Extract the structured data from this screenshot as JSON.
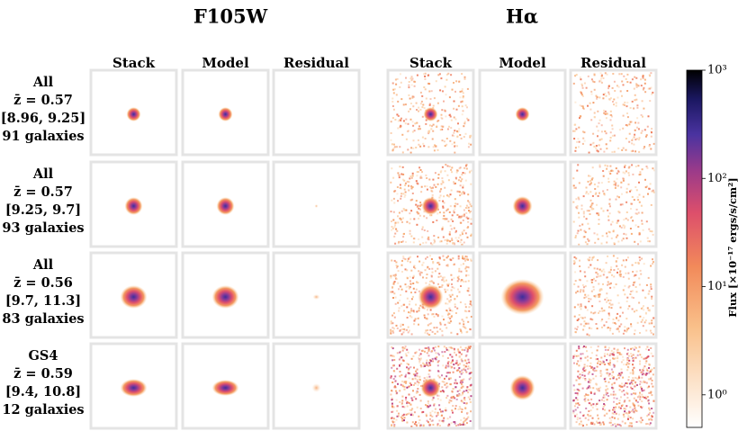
{
  "bands": [
    "F105W",
    "Hα"
  ],
  "columns": [
    "Stack",
    "Model",
    "Residual",
    "Stack",
    "Model",
    "Residual"
  ],
  "rows": [
    {
      "lines": [
        "All",
        "z̄ = 0.57",
        "[8.96, 9.25]",
        "91 galaxies"
      ]
    },
    {
      "lines": [
        "All",
        "z̄ = 0.57",
        "[9.25, 9.7]",
        "93 galaxies"
      ]
    },
    {
      "lines": [
        "All",
        "z̄ = 0.56",
        "[9.7, 11.3]",
        "83 galaxies"
      ]
    },
    {
      "lines": [
        "GS4",
        "z̄ = 0.59",
        "[9.4, 10.8]",
        "12 galaxies"
      ]
    }
  ],
  "colorbar": {
    "label": "Flux [×10⁻¹⁷ ergs/s/cm²]",
    "log": true,
    "lim": [
      0.5,
      1000
    ],
    "ticks": [
      {
        "value": 1,
        "label": "10⁰"
      },
      {
        "value": 10,
        "label": "10¹"
      },
      {
        "value": 100,
        "label": "10²"
      },
      {
        "value": 1000,
        "label": "10³"
      }
    ]
  }
}
